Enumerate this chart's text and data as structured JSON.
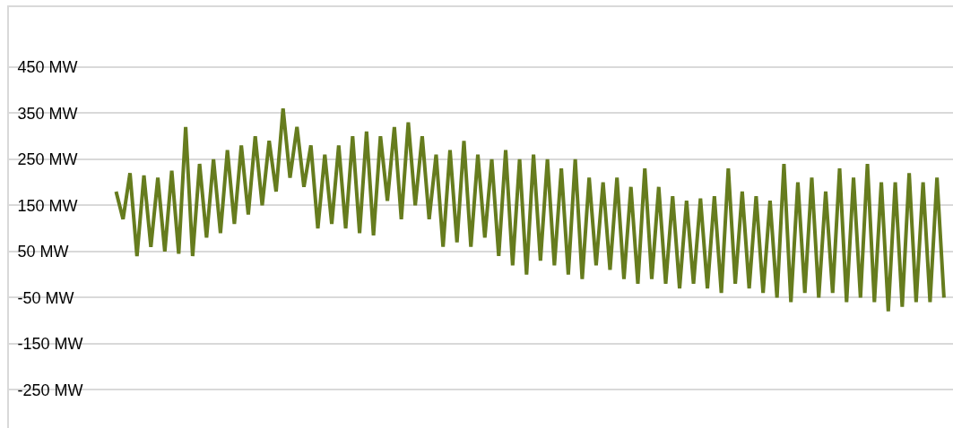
{
  "chart_data": {
    "type": "line",
    "categories": [
      null,
      null,
      null,
      null,
      null,
      null,
      null,
      null,
      null,
      null,
      null,
      null,
      null,
      null,
      null,
      null,
      null,
      null,
      null,
      null,
      null,
      null,
      null,
      null,
      null,
      null,
      null,
      null,
      null,
      null,
      null,
      null,
      null,
      null,
      null,
      null,
      null,
      null,
      null,
      null,
      null,
      null,
      null,
      null,
      null,
      null,
      null,
      null,
      null,
      null,
      null,
      null,
      null,
      null,
      null,
      null,
      null,
      null,
      null,
      null,
      null,
      null,
      null,
      null,
      null,
      null,
      null,
      null,
      null,
      null,
      null,
      null,
      null,
      null,
      null,
      null,
      null,
      null,
      null,
      null,
      null,
      null,
      null,
      null,
      null,
      null,
      null,
      null,
      null,
      null,
      null,
      null,
      null,
      null,
      null,
      null,
      null,
      null,
      null,
      null,
      null,
      null,
      null,
      null,
      null,
      null,
      null,
      null,
      null,
      null,
      null,
      null,
      null,
      null,
      null,
      null,
      null,
      null,
      null,
      null
    ],
    "series": [
      {
        "color": "#667c1e",
        "values": [
          180,
          120,
          220,
          40,
          215,
          60,
          210,
          50,
          225,
          45,
          320,
          40,
          240,
          80,
          250,
          90,
          270,
          110,
          280,
          130,
          300,
          150,
          290,
          180,
          360,
          210,
          320,
          190,
          280,
          100,
          260,
          110,
          280,
          100,
          300,
          90,
          310,
          85,
          300,
          160,
          320,
          120,
          330,
          150,
          300,
          120,
          260,
          60,
          270,
          70,
          290,
          60,
          260,
          80,
          250,
          40,
          270,
          20,
          250,
          0,
          260,
          30,
          250,
          20,
          230,
          0,
          250,
          -10,
          210,
          20,
          200,
          10,
          210,
          -10,
          190,
          -20,
          230,
          -10,
          190,
          -20,
          170,
          -30,
          160,
          -20,
          165,
          -30,
          170,
          -40,
          230,
          -20,
          180,
          -30,
          170,
          -40,
          160,
          -50,
          240,
          -60,
          200,
          -40,
          210,
          -50,
          180,
          -40,
          230,
          -60,
          210,
          -50,
          240,
          -60,
          200,
          -80,
          200,
          -70,
          220,
          -60,
          200,
          -60,
          210,
          -50
        ]
      }
    ],
    "ylim": [
      -333,
      580
    ],
    "yticks": [
      {
        "value": 450,
        "label": "450 MW"
      },
      {
        "value": 350,
        "label": "350 MW"
      },
      {
        "value": 250,
        "label": "250 MW"
      },
      {
        "value": 150,
        "label": "150 MW"
      },
      {
        "value": 50,
        "label": "50 MW"
      },
      {
        "value": -50,
        "label": "-50 MW"
      },
      {
        "value": -150,
        "label": "-150 MW"
      },
      {
        "value": -250,
        "label": "-250 MW"
      }
    ],
    "grid": "y",
    "tick_labels": "y",
    "line_style": "solid",
    "marker": "none"
  }
}
